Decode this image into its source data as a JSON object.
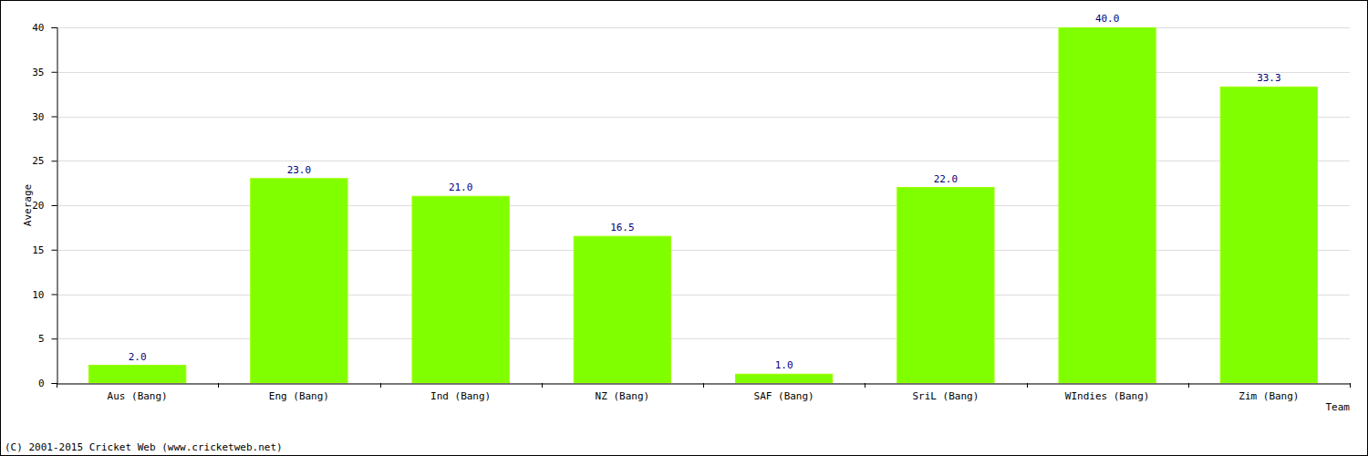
{
  "chart_data": {
    "type": "bar",
    "categories": [
      "Aus (Bang)",
      "Eng (Bang)",
      "Ind (Bang)",
      "NZ (Bang)",
      "SAF (Bang)",
      "SriL (Bang)",
      "WIndies (Bang)",
      "Zim (Bang)"
    ],
    "values": [
      2,
      23,
      21,
      16.5,
      1,
      22,
      40,
      33.3
    ],
    "value_labels": [
      "2.0",
      "23.0",
      "21.0",
      "16.5",
      "1.0",
      "22.0",
      "40.0",
      "33.3"
    ],
    "color": "#80ff00",
    "x_label": "Team",
    "y_label": "Average",
    "annotations": [
      "(C) 2001-2015 Cricket Web (www.cricketweb.net)"
    ],
    "ylim": [
      0,
      40
    ],
    "yticks": [
      0,
      5,
      10,
      15,
      20,
      25,
      30,
      35,
      40
    ],
    "grid": true,
    "data_labels": true
  }
}
